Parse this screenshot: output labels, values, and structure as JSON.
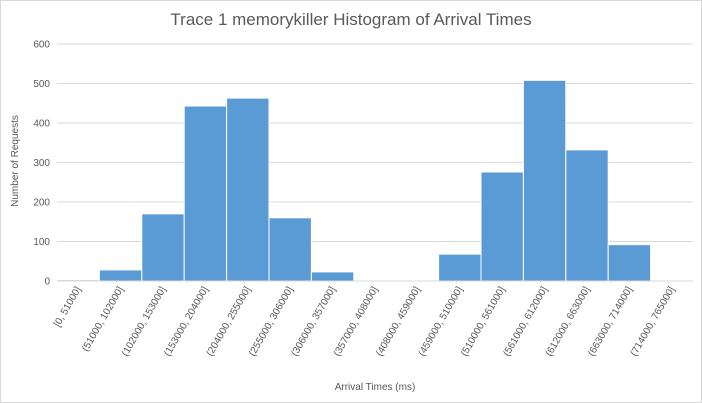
{
  "chart_data": {
    "type": "bar",
    "title": "Trace 1 memorykiller Histogram of Arrival Times",
    "xlabel": "Arrival Times (ms)",
    "ylabel": "Number of Requests",
    "ylim": [
      0,
      600
    ],
    "yticks": [
      0,
      100,
      200,
      300,
      400,
      500,
      600
    ],
    "grid": true,
    "legend": "none",
    "bar_color": "#5b9bd5",
    "categories": [
      "[0, 51000]",
      "(51000, 102000]",
      "(102000, 153000]",
      "(153000, 204000]",
      "(204000, 255000]",
      "(255000, 306000]",
      "(306000, 357000]",
      "(357000, 408000]",
      "(408000, 459000]",
      "(459000, 510000]",
      "(510000, 561000]",
      "(561000, 612000]",
      "(612000, 663000]",
      "(663000, 714000]",
      "(714000, 765000]"
    ],
    "values": [
      3,
      28,
      170,
      443,
      463,
      160,
      23,
      0,
      0,
      68,
      276,
      508,
      332,
      92,
      0
    ]
  }
}
